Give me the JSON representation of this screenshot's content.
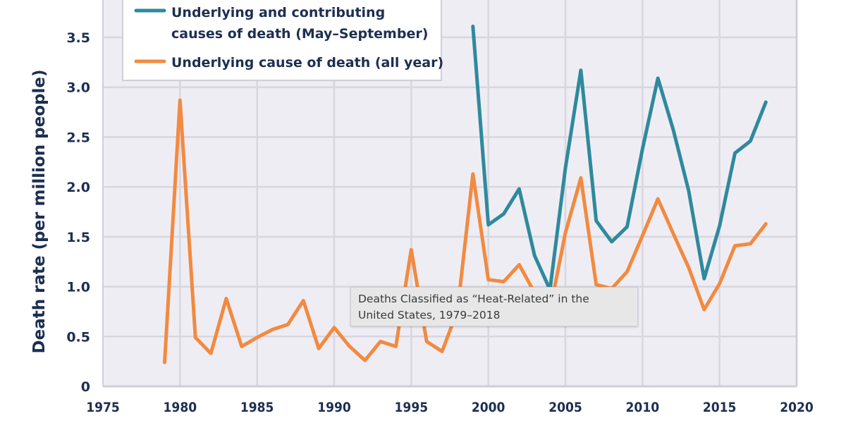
{
  "chart_data": {
    "type": "line",
    "title": "Deaths Classified as “Heat-Related” in the United States, 1979–2018",
    "xlabel": "",
    "ylabel": "Death rate (per million people)",
    "xlim": [
      1975,
      2020
    ],
    "ylim": [
      0,
      3.5
    ],
    "x_ticks": [
      "1975",
      "1980",
      "1985",
      "1990",
      "1995",
      "2000",
      "2005",
      "2010",
      "2015",
      "2020"
    ],
    "y_ticks": [
      "0",
      "0.5",
      "1.0",
      "1.5",
      "2.0",
      "2.5",
      "3.0",
      "3.5"
    ],
    "grid": true,
    "legend_position": "top-left",
    "series": [
      {
        "name": "Underlying and contributing causes of death (May–September)",
        "legend_lines": [
          "Underlying and contributing",
          "causes of death (May–September)"
        ],
        "color": "#2e8a9c",
        "x": [
          1999,
          2000,
          2001,
          2002,
          2003,
          2004,
          2005,
          2006,
          2007,
          2008,
          2009,
          2010,
          2011,
          2012,
          2013,
          2014,
          2015,
          2016,
          2017,
          2018
        ],
        "values": [
          3.61,
          1.62,
          1.73,
          1.98,
          1.31,
          0.97,
          2.19,
          3.17,
          1.66,
          1.45,
          1.6,
          2.38,
          3.09,
          2.57,
          1.96,
          1.08,
          1.61,
          2.34,
          2.46,
          2.85
        ]
      },
      {
        "name": "Underlying cause of death (all year)",
        "legend_lines": [
          "Underlying cause of death (all year)"
        ],
        "color": "#f28a40",
        "x": [
          1979,
          1980,
          1981,
          1982,
          1983,
          1984,
          1985,
          1986,
          1987,
          1988,
          1989,
          1990,
          1991,
          1992,
          1993,
          1994,
          1995,
          1996,
          1997,
          1998,
          1999,
          2000,
          2001,
          2002,
          2003,
          2004,
          2005,
          2006,
          2007,
          2008,
          2009,
          2010,
          2011,
          2012,
          2013,
          2014,
          2015,
          2016,
          2017,
          2018
        ],
        "values": [
          0.24,
          2.87,
          0.49,
          0.33,
          0.88,
          0.4,
          0.49,
          0.57,
          0.62,
          0.86,
          0.38,
          0.59,
          0.4,
          0.26,
          0.45,
          0.4,
          1.37,
          0.45,
          0.35,
          0.76,
          2.13,
          1.07,
          1.05,
          1.22,
          0.94,
          0.76,
          1.54,
          2.09,
          1.02,
          0.98,
          1.15,
          1.51,
          1.88,
          1.53,
          1.19,
          0.77,
          1.03,
          1.41,
          1.43,
          1.63
        ]
      }
    ]
  },
  "tooltip": {
    "line1": "Deaths Classified as “Heat-Related” in the",
    "line2": "United States, 1979–2018"
  },
  "colors": {
    "plot_background": "#efedf4",
    "grid": "#d8d6de",
    "text": "#1c2f52"
  }
}
